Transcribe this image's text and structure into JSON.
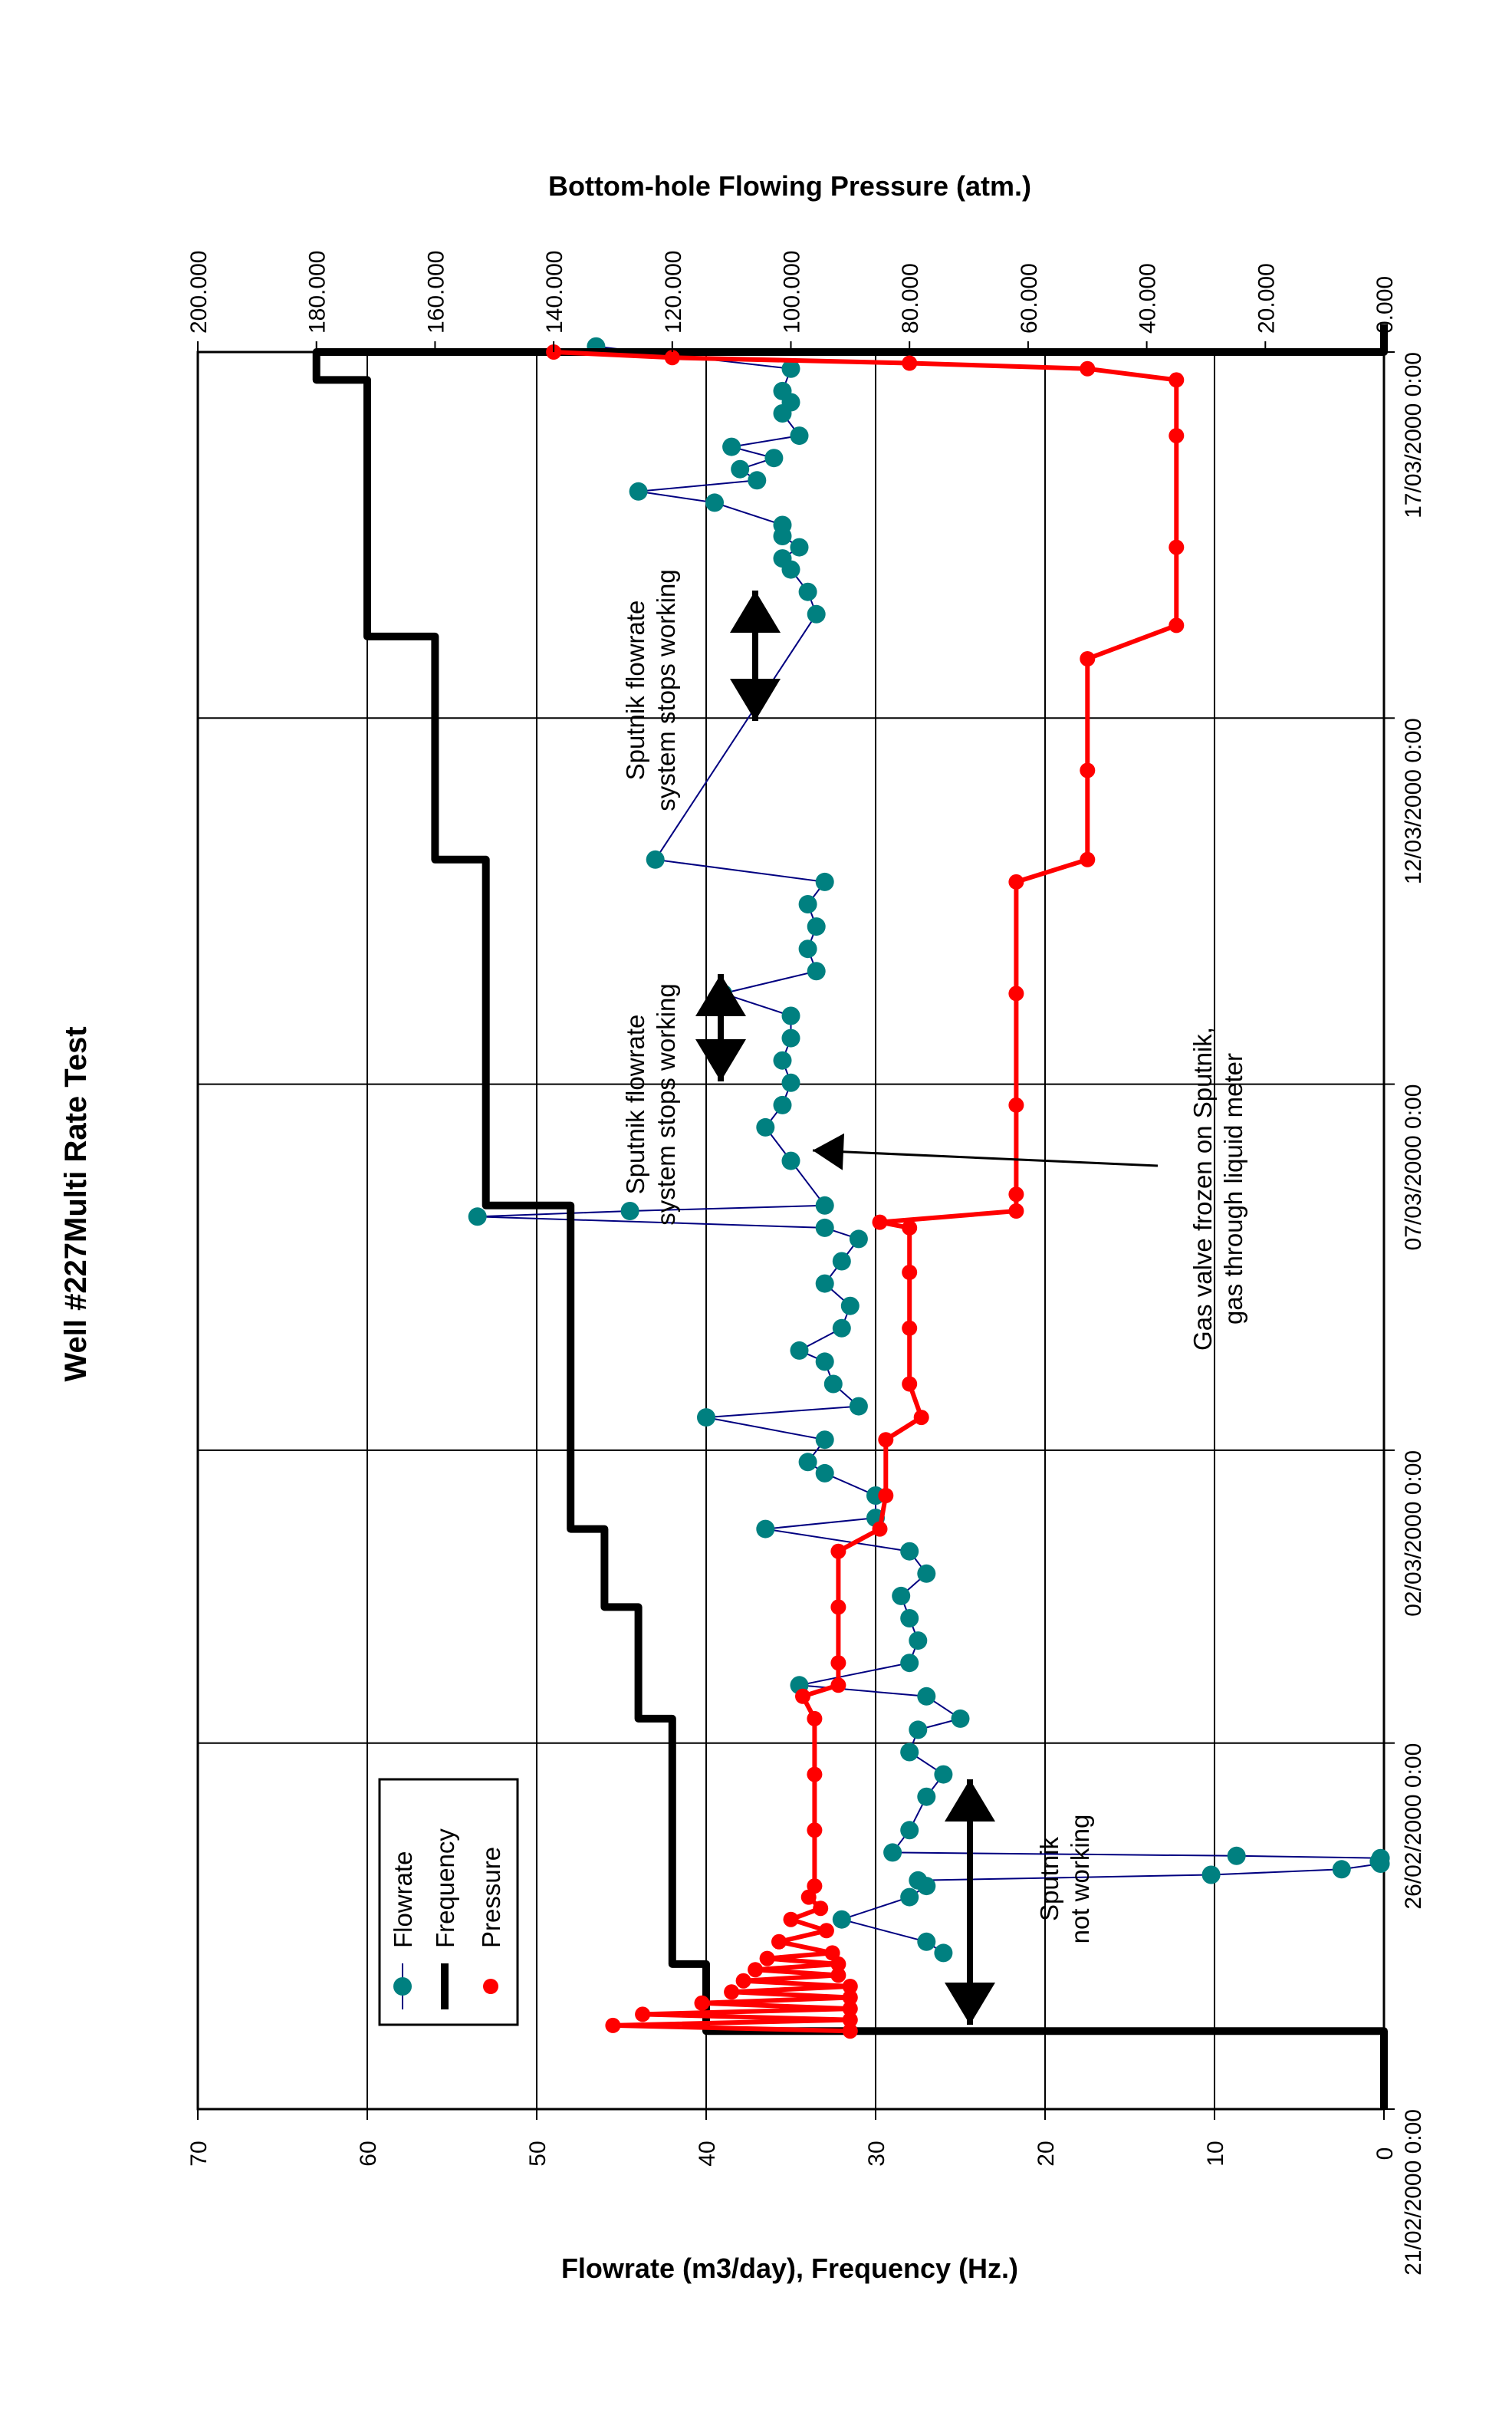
{
  "chart_data": {
    "type": "line",
    "title": "Well #227Multi Rate Test",
    "xlabel": "",
    "x_tick_labels": [
      "21/02/2000 0:00",
      "26/02/2000 0:00",
      "02/03/2000 0:00",
      "07/03/2000 0:00",
      "12/03/2000 0:00",
      "17/03/2000 0:00"
    ],
    "xlim": [
      "21/02/2000 0:00",
      "17/03/2000 0:00"
    ],
    "y_left_label": "Flowrate (m3/day), Frequency (Hz.)",
    "y_left_ticks": [
      "0",
      "10",
      "20",
      "30",
      "40",
      "50",
      "60",
      "70"
    ],
    "y_left_lim": [
      0,
      70
    ],
    "y_right_label": "Bottom-hole Flowing Pressure (atm.)",
    "y_right_ticks": [
      "0.000",
      "20.000",
      "40.000",
      "60.000",
      "80.000",
      "100.000",
      "120.000",
      "140.000",
      "160.000",
      "180.000",
      "200.000"
    ],
    "y_right_lim": [
      0,
      200
    ],
    "grid": true,
    "orientation": "rotated 90 degrees counter-clockwise",
    "legend_position": "bottom-left",
    "series": [
      {
        "name": "Flowrate",
        "axis": "left",
        "color": "#008080",
        "line_color": "#000080",
        "marker": "circle",
        "points": [
          [
            22.4,
            26.0
          ],
          [
            22.5,
            27.0
          ],
          [
            22.7,
            32.0
          ],
          [
            22.9,
            28.0
          ],
          [
            23.0,
            27.0
          ],
          [
            23.05,
            27.5
          ],
          [
            23.1,
            10.2
          ],
          [
            23.15,
            2.5
          ],
          [
            23.2,
            0.2
          ],
          [
            23.22,
            0.3
          ],
          [
            23.25,
            0.2
          ],
          [
            23.27,
            8.7
          ],
          [
            23.3,
            29.0
          ],
          [
            23.5,
            28.0
          ],
          [
            23.8,
            27.0
          ],
          [
            24.0,
            26.0
          ],
          [
            24.2,
            28.0
          ],
          [
            24.4,
            27.5
          ],
          [
            24.5,
            25.0
          ],
          [
            24.7,
            27.0
          ],
          [
            24.8,
            34.5
          ],
          [
            25.0,
            28.0
          ],
          [
            25.2,
            27.5
          ],
          [
            25.4,
            28.0
          ],
          [
            25.6,
            28.5
          ],
          [
            25.8,
            27.0
          ],
          [
            26.0,
            28.0
          ],
          [
            26.2,
            36.5
          ],
          [
            26.3,
            30.0
          ],
          [
            26.5,
            30.0
          ],
          [
            26.7,
            33.0
          ],
          [
            26.8,
            34.0
          ],
          [
            27.0,
            33.0
          ],
          [
            27.2,
            40.0
          ],
          [
            27.3,
            31.0
          ],
          [
            27.5,
            32.5
          ],
          [
            27.7,
            33.0
          ],
          [
            27.8,
            34.5
          ],
          [
            28.0,
            32.0
          ],
          [
            28.2,
            31.5
          ],
          [
            28.4,
            33.0
          ],
          [
            28.6,
            32.0
          ],
          [
            28.8,
            31.0
          ],
          [
            28.9,
            33.0
          ],
          [
            29.0,
            53.5
          ],
          [
            29.05,
            44.5
          ],
          [
            29.1,
            33.0
          ],
          [
            29.5,
            35.0
          ],
          [
            29.8,
            36.5
          ],
          [
            30.0,
            35.5
          ],
          [
            30.2,
            35.0
          ],
          [
            30.4,
            35.5
          ],
          [
            30.6,
            35.0
          ],
          [
            30.8,
            35.0
          ],
          [
            31.0,
            39.0
          ],
          [
            31.2,
            33.5
          ],
          [
            31.4,
            34.0
          ],
          [
            31.6,
            33.5
          ],
          [
            31.8,
            34.0
          ],
          [
            32.0,
            33.0
          ],
          [
            32.2,
            43.0
          ],
          [
            34.4,
            33.5
          ],
          [
            34.6,
            34.0
          ],
          [
            34.8,
            35.0
          ],
          [
            34.9,
            35.5
          ],
          [
            35.0,
            34.5
          ],
          [
            35.1,
            35.5
          ],
          [
            35.2,
            35.5
          ],
          [
            35.4,
            39.5
          ],
          [
            35.5,
            44.0
          ],
          [
            35.6,
            37.0
          ],
          [
            35.7,
            38.0
          ],
          [
            35.8,
            36.0
          ],
          [
            35.9,
            38.5
          ],
          [
            36.0,
            34.5
          ],
          [
            36.2,
            35.5
          ],
          [
            36.3,
            35.0
          ],
          [
            36.4,
            35.5
          ],
          [
            36.6,
            35.0
          ],
          [
            36.8,
            46.5
          ]
        ]
      },
      {
        "name": "Frequency",
        "axis": "left",
        "color": "#000000",
        "marker": "none",
        "points": [
          [
            21.0,
            0
          ],
          [
            21.7,
            0
          ],
          [
            21.7,
            40
          ],
          [
            22.3,
            40
          ],
          [
            22.3,
            42
          ],
          [
            23.3,
            42
          ],
          [
            23.9,
            42
          ],
          [
            24.5,
            42
          ],
          [
            24.5,
            44
          ],
          [
            25.5,
            44
          ],
          [
            25.5,
            46
          ],
          [
            26.2,
            46
          ],
          [
            26.2,
            48
          ],
          [
            29.1,
            48
          ],
          [
            29.1,
            53
          ],
          [
            32.2,
            53
          ],
          [
            32.2,
            56
          ],
          [
            34.2,
            56
          ],
          [
            34.2,
            60
          ],
          [
            36.5,
            60
          ],
          [
            36.5,
            63
          ],
          [
            36.75,
            63
          ],
          [
            36.75,
            0
          ],
          [
            37.0,
            0
          ]
        ]
      },
      {
        "name": "Pressure",
        "axis": "right",
        "color": "#ff0000",
        "marker": "circle",
        "points": [
          [
            21.7,
            90
          ],
          [
            21.75,
            130
          ],
          [
            21.8,
            90
          ],
          [
            21.85,
            125
          ],
          [
            21.9,
            90
          ],
          [
            21.95,
            115
          ],
          [
            22.0,
            90
          ],
          [
            22.05,
            110
          ],
          [
            22.1,
            90
          ],
          [
            22.15,
            108
          ],
          [
            22.2,
            92
          ],
          [
            22.25,
            106
          ],
          [
            22.3,
            92
          ],
          [
            22.35,
            104
          ],
          [
            22.4,
            93
          ],
          [
            22.5,
            102
          ],
          [
            22.6,
            94
          ],
          [
            22.7,
            100
          ],
          [
            22.8,
            95
          ],
          [
            22.9,
            97
          ],
          [
            23.0,
            96
          ],
          [
            23.5,
            96
          ],
          [
            24.0,
            96
          ],
          [
            24.5,
            96
          ],
          [
            24.7,
            98
          ],
          [
            24.8,
            92
          ],
          [
            25.0,
            92
          ],
          [
            25.5,
            92
          ],
          [
            26.0,
            92
          ],
          [
            26.2,
            85
          ],
          [
            26.5,
            84
          ],
          [
            27.0,
            84
          ],
          [
            27.2,
            78
          ],
          [
            27.5,
            80
          ],
          [
            28.0,
            80
          ],
          [
            28.5,
            80
          ],
          [
            28.9,
            80
          ],
          [
            28.95,
            85
          ],
          [
            29.05,
            62
          ],
          [
            29.2,
            62
          ],
          [
            30.0,
            62
          ],
          [
            31.0,
            62
          ],
          [
            32.0,
            62
          ],
          [
            32.2,
            50
          ],
          [
            33.0,
            50
          ],
          [
            34.0,
            50
          ],
          [
            34.3,
            35
          ],
          [
            35.0,
            35
          ],
          [
            36.0,
            35
          ],
          [
            36.5,
            35
          ],
          [
            36.6,
            50
          ],
          [
            36.65,
            80
          ],
          [
            36.7,
            120
          ],
          [
            36.75,
            140
          ]
        ]
      }
    ],
    "annotations": [
      {
        "text_lines": [
          "Sputnik",
          "not working"
        ],
        "arrow": "double"
      },
      {
        "text_lines": [
          "Sputnik flowrate",
          "system stops working"
        ],
        "arrow": "double"
      },
      {
        "text_lines": [
          "Sputnik flowrate",
          "system stops working"
        ],
        "arrow": "double"
      },
      {
        "text_lines": [
          "Gas valve frozen on Sputnik,",
          "gas through liquid meter"
        ],
        "arrow": "single"
      }
    ]
  }
}
